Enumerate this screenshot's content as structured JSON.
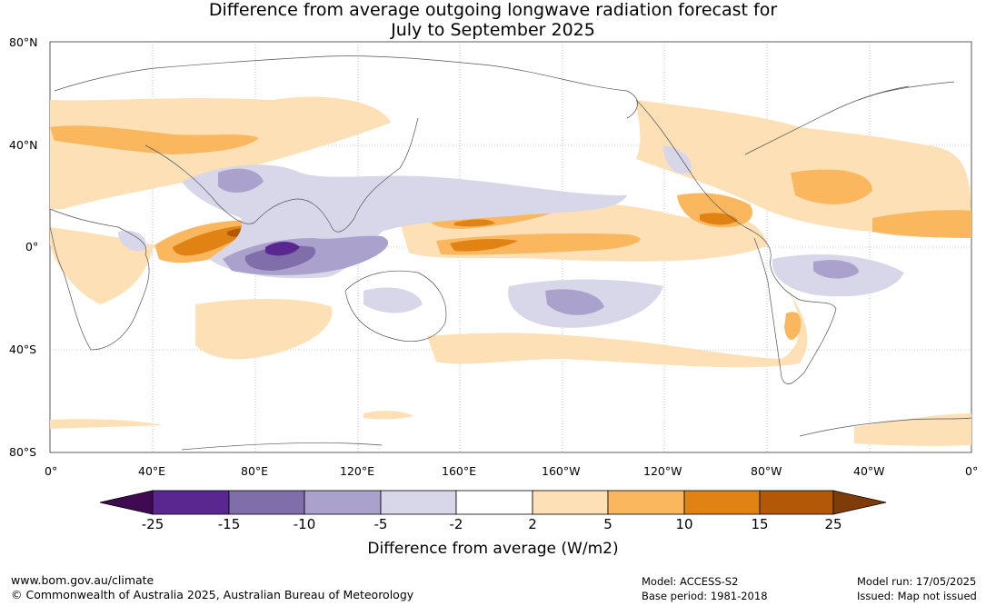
{
  "title_line1": "Difference from average outgoing longwave radiation forecast for",
  "title_line2": "July to September 2025",
  "lat_labels": [
    "80°N",
    "40°N",
    "0°",
    "40°S",
    "80°S"
  ],
  "lon_labels": [
    "0°",
    "40°E",
    "80°E",
    "120°E",
    "160°E",
    "160°W",
    "120°W",
    "80°W",
    "40°W",
    "0°"
  ],
  "colorbar": {
    "title": "Difference from average (W/m2)",
    "tick_labels": [
      "-25",
      "-15",
      "-10",
      "-5",
      "-2",
      "2",
      "5",
      "10",
      "15",
      "25"
    ],
    "colors": [
      "#3f0a52",
      "#5a2690",
      "#7f6eaa",
      "#aaa2cc",
      "#d8d7ea",
      "#ffffff",
      "#fee0b6",
      "#fbb75e",
      "#e08314",
      "#b35807",
      "#7f3b08"
    ]
  },
  "footer": {
    "website": "www.bom.gov.au/climate",
    "copyright": "© Commonwealth of Australia 2025, Australian Bureau of Meteorology",
    "model": "Model: ACCESS-S2",
    "base_period": "Base period: 1981-2018",
    "model_run": "Model run: 17/05/2025",
    "issued": "Issued: Map not issued"
  }
}
